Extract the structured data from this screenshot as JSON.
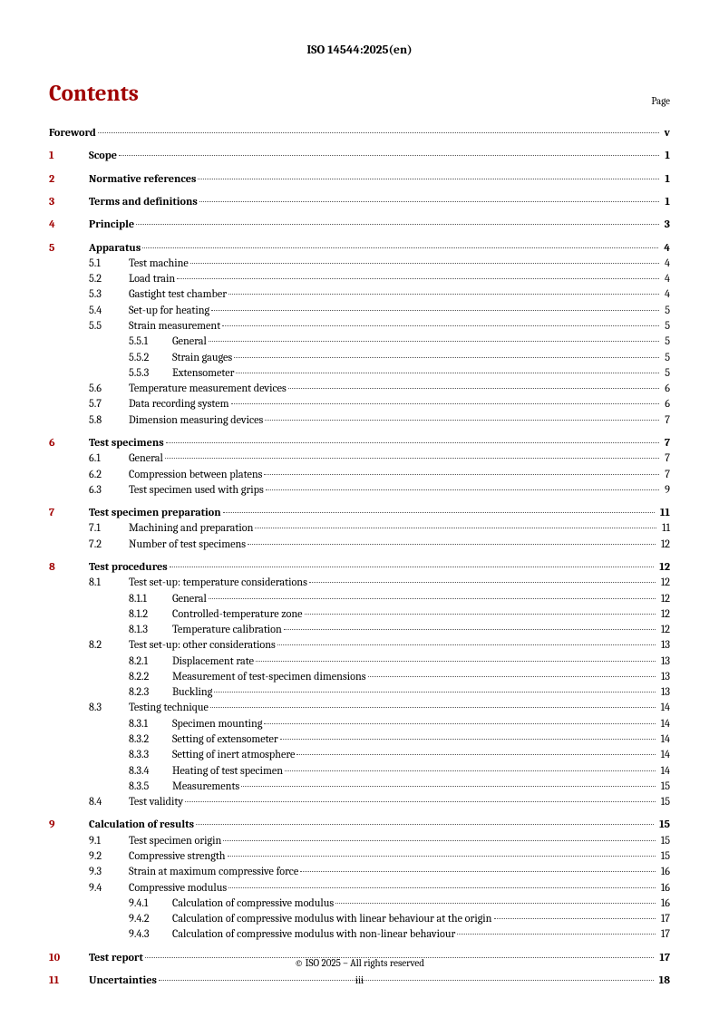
{
  "doc_header": "ISO 14544:2025(en)",
  "contents_title": "Contents",
  "page_label": "Page",
  "footer": {
    "copyright": "© ISO 2025 – All rights reserved",
    "page_number": "iii"
  },
  "colors": {
    "heading_red": "#a00000",
    "text": "#000000",
    "background": "#ffffff"
  },
  "typography": {
    "font_family": "Cambria, Georgia, serif",
    "title_fontsize_pt": 18,
    "body_fontsize_pt": 9,
    "header_fontsize_pt": 10
  },
  "toc": [
    {
      "level": "foreword",
      "num": "",
      "title": "Foreword",
      "page": "v"
    },
    {
      "level": 1,
      "num": "1",
      "title": "Scope",
      "page": "1"
    },
    {
      "level": 1,
      "num": "2",
      "title": "Normative references",
      "page": "1"
    },
    {
      "level": 1,
      "num": "3",
      "title": "Terms and definitions",
      "page": "1"
    },
    {
      "level": 1,
      "num": "4",
      "title": "Principle",
      "page": "3"
    },
    {
      "level": 1,
      "num": "5",
      "title": "Apparatus",
      "page": "4"
    },
    {
      "level": 2,
      "num": "5.1",
      "title": "Test machine",
      "page": "4"
    },
    {
      "level": 2,
      "num": "5.2",
      "title": "Load train",
      "page": "4"
    },
    {
      "level": 2,
      "num": "5.3",
      "title": "Gastight test chamber",
      "page": "4"
    },
    {
      "level": 2,
      "num": "5.4",
      "title": "Set-up for heating",
      "page": "5"
    },
    {
      "level": 2,
      "num": "5.5",
      "title": "Strain measurement",
      "page": "5"
    },
    {
      "level": 3,
      "num": "5.5.1",
      "title": "General",
      "page": "5"
    },
    {
      "level": 3,
      "num": "5.5.2",
      "title": "Strain gauges",
      "page": "5"
    },
    {
      "level": 3,
      "num": "5.5.3",
      "title": "Extensometer",
      "page": "5"
    },
    {
      "level": 2,
      "num": "5.6",
      "title": "Temperature measurement devices",
      "page": "6"
    },
    {
      "level": 2,
      "num": "5.7",
      "title": "Data recording system",
      "page": "6"
    },
    {
      "level": 2,
      "num": "5.8",
      "title": "Dimension measuring devices",
      "page": "7"
    },
    {
      "level": 1,
      "num": "6",
      "title": "Test specimens",
      "page": "7"
    },
    {
      "level": 2,
      "num": "6.1",
      "title": "General",
      "page": "7"
    },
    {
      "level": 2,
      "num": "6.2",
      "title": "Compression between platens",
      "page": "7"
    },
    {
      "level": 2,
      "num": "6.3",
      "title": "Test specimen used with grips",
      "page": "9"
    },
    {
      "level": 1,
      "num": "7",
      "title": "Test specimen preparation",
      "page": "11"
    },
    {
      "level": 2,
      "num": "7.1",
      "title": "Machining and preparation",
      "page": "11"
    },
    {
      "level": 2,
      "num": "7.2",
      "title": "Number of test specimens",
      "page": "12"
    },
    {
      "level": 1,
      "num": "8",
      "title": "Test procedures",
      "page": "12"
    },
    {
      "level": 2,
      "num": "8.1",
      "title": "Test set-up: temperature considerations",
      "page": "12"
    },
    {
      "level": 3,
      "num": "8.1.1",
      "title": "General",
      "page": "12"
    },
    {
      "level": 3,
      "num": "8.1.2",
      "title": "Controlled-temperature zone",
      "page": "12"
    },
    {
      "level": 3,
      "num": "8.1.3",
      "title": "Temperature calibration",
      "page": "12"
    },
    {
      "level": 2,
      "num": "8.2",
      "title": "Test set-up: other considerations",
      "page": "13"
    },
    {
      "level": 3,
      "num": "8.2.1",
      "title": "Displacement rate",
      "page": "13"
    },
    {
      "level": 3,
      "num": "8.2.2",
      "title": "Measurement of test-specimen dimensions",
      "page": "13"
    },
    {
      "level": 3,
      "num": "8.2.3",
      "title": "Buckling",
      "page": "13"
    },
    {
      "level": 2,
      "num": "8.3",
      "title": "Testing technique",
      "page": "14"
    },
    {
      "level": 3,
      "num": "8.3.1",
      "title": "Specimen mounting",
      "page": "14"
    },
    {
      "level": 3,
      "num": "8.3.2",
      "title": "Setting of extensometer",
      "page": "14"
    },
    {
      "level": 3,
      "num": "8.3.3",
      "title": "Setting of inert atmosphere",
      "page": "14"
    },
    {
      "level": 3,
      "num": "8.3.4",
      "title": "Heating of test specimen",
      "page": "14"
    },
    {
      "level": 3,
      "num": "8.3.5",
      "title": "Measurements",
      "page": "15"
    },
    {
      "level": 2,
      "num": "8.4",
      "title": "Test validity",
      "page": "15"
    },
    {
      "level": 1,
      "num": "9",
      "title": "Calculation of results",
      "page": "15"
    },
    {
      "level": 2,
      "num": "9.1",
      "title": "Test specimen origin",
      "page": "15"
    },
    {
      "level": 2,
      "num": "9.2",
      "title": "Compressive strength",
      "page": "15"
    },
    {
      "level": 2,
      "num": "9.3",
      "title": "Strain at maximum compressive force",
      "page": "16"
    },
    {
      "level": 2,
      "num": "9.4",
      "title": "Compressive modulus",
      "page": "16"
    },
    {
      "level": 3,
      "num": "9.4.1",
      "title": "Calculation of compressive modulus",
      "page": "16"
    },
    {
      "level": 3,
      "num": "9.4.2",
      "title": "Calculation of compressive modulus with linear behaviour at the origin",
      "page": "17"
    },
    {
      "level": 3,
      "num": "9.4.3",
      "title": "Calculation of compressive modulus with non-linear behaviour",
      "page": "17"
    },
    {
      "level": 1,
      "num": "10",
      "title": "Test report",
      "page": "17"
    },
    {
      "level": 1,
      "num": "11",
      "title": "Uncertainties",
      "page": "18"
    }
  ]
}
